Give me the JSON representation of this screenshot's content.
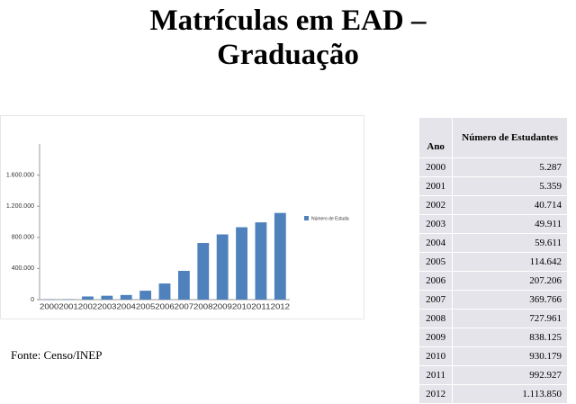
{
  "slide_title": "Matrículas em EAD – Graduação",
  "chart_data": {
    "type": "bar",
    "categories": [
      "2000",
      "2001",
      "2002",
      "2003",
      "2004",
      "2005",
      "2006",
      "2007",
      "2008",
      "2009",
      "2010",
      "2011",
      "2012"
    ],
    "series": [
      {
        "name": "Número de Estuda",
        "color": "#4f81bd",
        "values": [
          5287,
          5359,
          40714,
          49911,
          59611,
          114642,
          207206,
          369766,
          727961,
          838125,
          930179,
          992927,
          1113850
        ]
      }
    ],
    "ylim": [
      0,
      2000000
    ],
    "yticks": [
      0,
      {
        "value": 400000,
        "label": "400.000"
      },
      {
        "value": 800000,
        "label": "800.000"
      },
      {
        "value": 1200000,
        "label": "1.200.000"
      },
      {
        "value": 1600000,
        "label": "1.600.000"
      }
    ],
    "grid": false,
    "legend": "right"
  },
  "source": "Fonte: Censo/INEP",
  "table": {
    "header": [
      "Ano",
      "Número de Estudantes"
    ],
    "rows": [
      [
        "2000",
        "5.287"
      ],
      [
        "2001",
        "5.359"
      ],
      [
        "2002",
        "40.714"
      ],
      [
        "2003",
        "49.911"
      ],
      [
        "2004",
        "59.611"
      ],
      [
        "2005",
        "114.642"
      ],
      [
        "2006",
        "207.206"
      ],
      [
        "2007",
        "369.766"
      ],
      [
        "2008",
        "727.961"
      ],
      [
        "2009",
        "838.125"
      ],
      [
        "2010",
        "930.179"
      ],
      [
        "2011",
        "992.927"
      ],
      [
        "2012",
        "1.113.850"
      ]
    ]
  }
}
